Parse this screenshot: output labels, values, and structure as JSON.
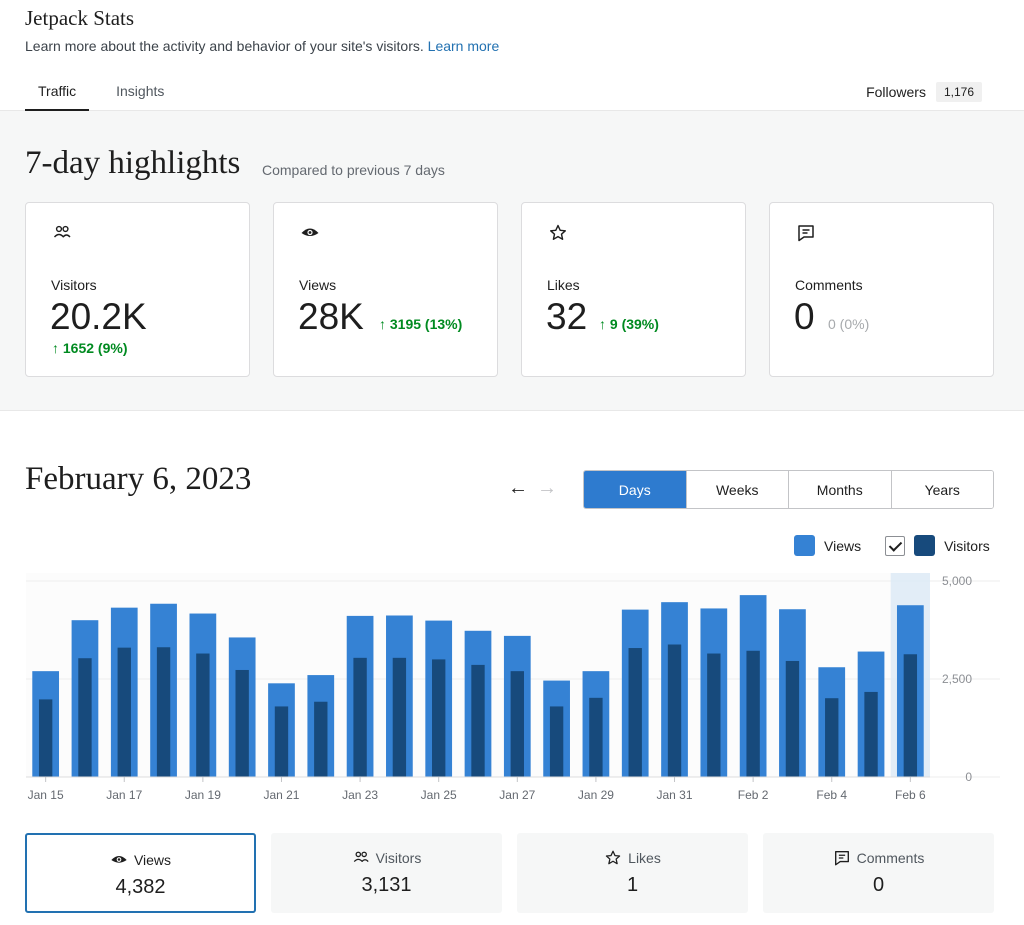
{
  "header": {
    "title": "Jetpack Stats",
    "subtitle": "Learn more about the activity and behavior of your site's visitors.",
    "learn_more": "Learn more",
    "tabs": [
      {
        "label": "Traffic",
        "active": true
      },
      {
        "label": "Insights",
        "active": false
      }
    ],
    "followers_label": "Followers",
    "followers_count": "1,176"
  },
  "highlights": {
    "title": "7-day highlights",
    "subtitle": "Compared to previous 7 days",
    "cards": [
      {
        "icon": "people-icon",
        "label": "Visitors",
        "value": "20.2K",
        "delta": "↑ 1652 (9%)",
        "trend": "up"
      },
      {
        "icon": "eye-icon",
        "label": "Views",
        "value": "28K",
        "delta": "↑ 3195 (13%)",
        "trend": "up"
      },
      {
        "icon": "star-icon",
        "label": "Likes",
        "value": "32",
        "delta": "↑ 9 (39%)",
        "trend": "up"
      },
      {
        "icon": "comment-icon",
        "label": "Comments",
        "value": "0",
        "delta": "0 (0%)",
        "trend": "neutral"
      }
    ]
  },
  "chart_section": {
    "date_title": "February 6, 2023",
    "prev_arrow": "←",
    "next_arrow": "→",
    "periods": [
      {
        "label": "Days",
        "active": true
      },
      {
        "label": "Weeks",
        "active": false
      },
      {
        "label": "Months",
        "active": false
      },
      {
        "label": "Years",
        "active": false
      }
    ],
    "legend": {
      "views": "Views",
      "visitors": "Visitors",
      "visitors_checked": true
    }
  },
  "chart_data": {
    "type": "bar",
    "categories": [
      "Jan 15",
      "Jan 16",
      "Jan 17",
      "Jan 18",
      "Jan 19",
      "Jan 20",
      "Jan 21",
      "Jan 22",
      "Jan 23",
      "Jan 24",
      "Jan 25",
      "Jan 26",
      "Jan 27",
      "Jan 28",
      "Jan 29",
      "Jan 30",
      "Jan 31",
      "Feb 1",
      "Feb 2",
      "Feb 3",
      "Feb 4",
      "Feb 5",
      "Feb 6"
    ],
    "tick_labels": [
      "Jan 15",
      "Jan 17",
      "Jan 19",
      "Jan 21",
      "Jan 23",
      "Jan 25",
      "Jan 27",
      "Jan 29",
      "Jan 31",
      "Feb 2",
      "Feb 4",
      "Feb 6"
    ],
    "series": [
      {
        "name": "Views",
        "color": "#3582d4",
        "values": [
          2700,
          4000,
          4320,
          4420,
          4170,
          3560,
          2390,
          2600,
          4110,
          4120,
          3990,
          3730,
          3600,
          2460,
          2700,
          4270,
          4460,
          4300,
          4640,
          4280,
          2800,
          3200,
          4382
        ]
      },
      {
        "name": "Visitors",
        "color": "#174a7c",
        "values": [
          1980,
          3030,
          3300,
          3310,
          3150,
          2730,
          1800,
          1920,
          3040,
          3040,
          3000,
          2860,
          2700,
          1800,
          2020,
          3290,
          3380,
          3150,
          3220,
          2960,
          2010,
          2170,
          3131
        ]
      }
    ],
    "yticks": [
      "5,000",
      "2,500",
      "0"
    ],
    "ylim": [
      0,
      5000
    ],
    "highlighted_category": "Feb 6",
    "grid": true
  },
  "summary": [
    {
      "icon": "eye-icon",
      "label": "Views",
      "value": "4,382",
      "active": true
    },
    {
      "icon": "people-icon",
      "label": "Visitors",
      "value": "3,131",
      "active": false
    },
    {
      "icon": "star-icon",
      "label": "Likes",
      "value": "1",
      "active": false
    },
    {
      "icon": "comment-icon",
      "label": "Comments",
      "value": "0",
      "active": false
    }
  ]
}
